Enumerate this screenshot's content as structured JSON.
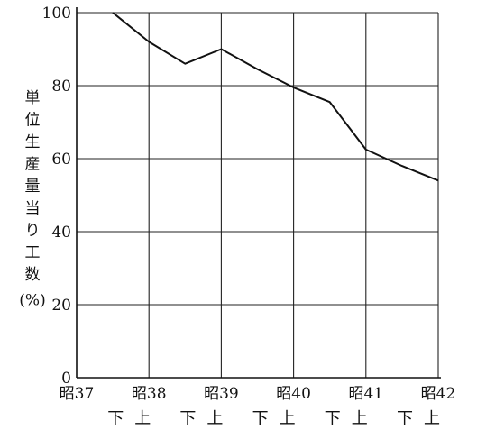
{
  "chart_data": {
    "type": "line",
    "ylabel_chars": [
      "単",
      "位",
      "生",
      "産",
      "量",
      "当",
      "り",
      "工",
      "数",
      "(%)"
    ],
    "ylim": [
      0,
      100
    ],
    "y_ticks": [
      "0",
      "20",
      "40",
      "60",
      "80",
      "100"
    ],
    "x_ticks": [
      "昭37",
      "昭38",
      "昭39",
      "昭40",
      "昭41",
      "昭42"
    ],
    "half_labels": [
      "下",
      "上",
      "下",
      "上",
      "下",
      "上",
      "下",
      "上",
      "下",
      "上"
    ],
    "grid": true,
    "series": [
      {
        "x": [
          37.5,
          38.0,
          38.5,
          39.0,
          39.5,
          40.0,
          40.5,
          41.0,
          41.5,
          42.0
        ],
        "values": [
          100,
          92,
          86,
          90,
          84.5,
          79.5,
          75.5,
          62.5,
          58,
          54
        ]
      }
    ]
  }
}
